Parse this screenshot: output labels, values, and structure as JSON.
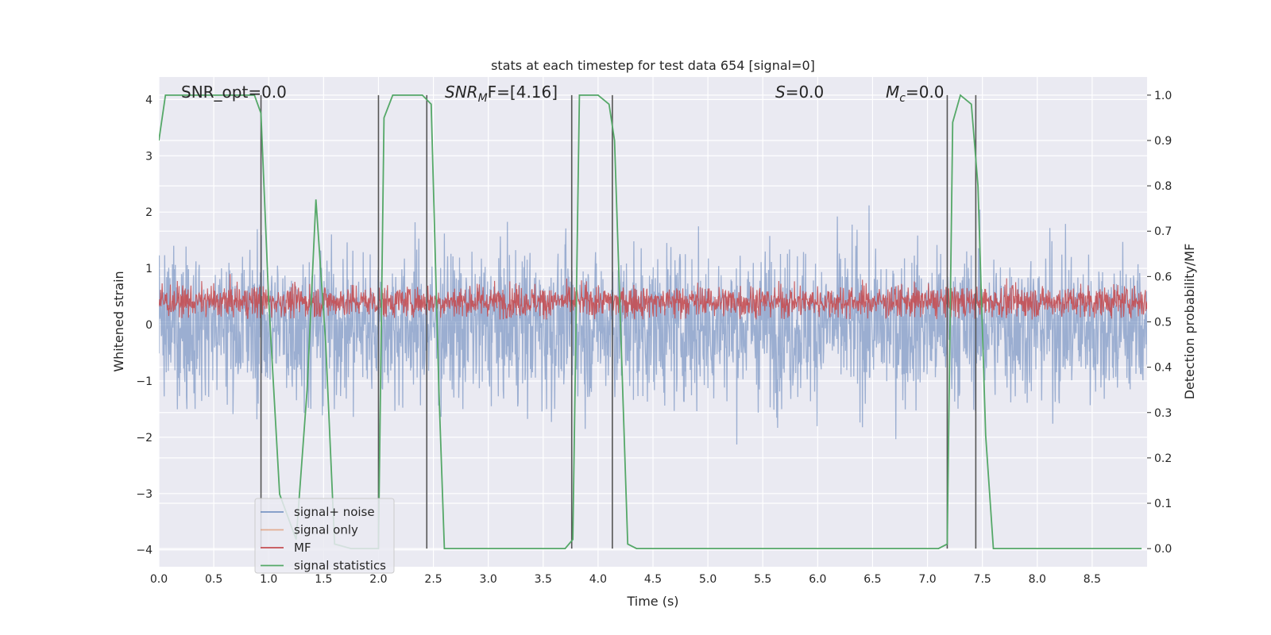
{
  "chart_data": {
    "type": "line",
    "title": "stats at each timestep for test data 654 [signal=0]",
    "xlabel": "Time (s)",
    "ylabel": "Whitened strain",
    "y2label": "Detection probability/MF",
    "xlim": [
      0,
      9
    ],
    "ylim": [
      -4.3,
      4.4
    ],
    "y2lim": [
      -0.04,
      1.04
    ],
    "xticks": [
      "0.0",
      "0.5",
      "1.0",
      "1.5",
      "2.0",
      "2.5",
      "3.0",
      "3.5",
      "4.0",
      "4.5",
      "5.0",
      "5.5",
      "6.0",
      "6.5",
      "7.0",
      "7.5",
      "8.0",
      "8.5"
    ],
    "yticks": [
      "−4",
      "−3",
      "−2",
      "−1",
      "0",
      "1",
      "2",
      "3",
      "4"
    ],
    "y2ticks": [
      "0.0",
      "0.1",
      "0.2",
      "0.3",
      "0.4",
      "0.5",
      "0.6",
      "0.7",
      "0.8",
      "0.9",
      "1.0"
    ],
    "grid": true,
    "legend_position": "lower-left",
    "annotations": {
      "snr_opt": "SNR_opt=0.0",
      "snr_mf_sym": "SNR",
      "snr_mf_sub": "M",
      "snr_mf_rest": "F=[4.16]",
      "s_sym": "S",
      "s_rest": "=0.0",
      "mc_sym": "M",
      "mc_sub": "c",
      "mc_rest": "=0.0"
    },
    "series": [
      {
        "name": "signal+ noise",
        "color": "#4c72b0",
        "style": "noise band, approx. ±2 to ±4 whitened strain"
      },
      {
        "name": "signal only",
        "color": "#dd8452",
        "values": []
      },
      {
        "name": "MF",
        "color": "#c44e52",
        "style": "approx. 0.5 to 0.6 on right axis"
      },
      {
        "name": "signal statistics",
        "color": "#55a868",
        "x": [
          0.0,
          0.06,
          0.6,
          0.87,
          0.93,
          1.0,
          1.1,
          1.25,
          1.35,
          1.43,
          1.52,
          1.6,
          1.75,
          2.0,
          2.05,
          2.13,
          2.4,
          2.48,
          2.55,
          2.6,
          3.7,
          3.77,
          3.83,
          4.0,
          4.1,
          4.15,
          4.22,
          4.27,
          4.35,
          7.1,
          7.18,
          7.23,
          7.3,
          7.4,
          7.46,
          7.53,
          7.6,
          8.95
        ],
        "values": [
          0.9,
          1.0,
          1.0,
          1.0,
          0.96,
          0.55,
          0.12,
          0.02,
          0.35,
          0.77,
          0.45,
          0.01,
          0.0,
          0.0,
          0.95,
          1.0,
          1.0,
          0.98,
          0.35,
          0.0,
          0.0,
          0.02,
          1.0,
          1.0,
          0.98,
          0.9,
          0.38,
          0.01,
          0.0,
          0.0,
          0.01,
          0.94,
          1.0,
          0.98,
          0.8,
          0.25,
          0.0,
          0.0
        ]
      }
    ],
    "vertical_markers": [
      0.93,
      2.0,
      2.44,
      3.76,
      4.13,
      7.18,
      7.44
    ]
  }
}
